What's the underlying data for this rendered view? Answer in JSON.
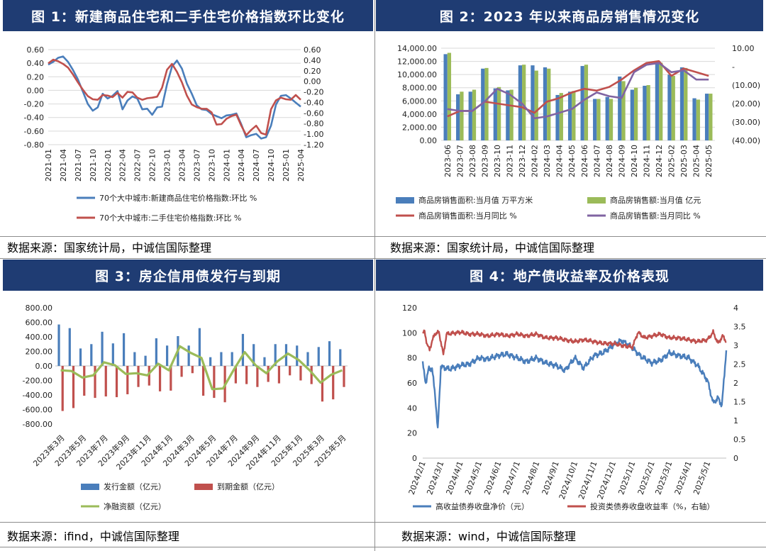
{
  "source_labels": {
    "p1": "数据来源：国家统计局，中诚信国际整理",
    "p2": "数据来源：国家统计局，中诚信国际整理",
    "p3": "数据来源：ifind，中诚信国际整理",
    "p4": "数据来源：wind，中诚信国际整理"
  },
  "colors": {
    "header": "#1f3c73",
    "blue": "#4a7ebb",
    "red": "#c0504d",
    "green": "#9bbb59",
    "purple": "#8064a2"
  },
  "chart_data": [
    {
      "type": "line",
      "title": "图 1：新建商品住宅和二手住宅价格指数环比变化",
      "x": [
        "2021-01",
        "2021-02",
        "2021-03",
        "2021-04",
        "2021-05",
        "2021-06",
        "2021-07",
        "2021-08",
        "2021-09",
        "2021-10",
        "2021-11",
        "2021-12",
        "2022-01",
        "2022-02",
        "2022-03",
        "2022-04",
        "2022-05",
        "2022-06",
        "2022-07",
        "2022-08",
        "2022-09",
        "2022-10",
        "2022-11",
        "2022-12",
        "2023-01",
        "2023-02",
        "2023-03",
        "2023-04",
        "2023-05",
        "2023-06",
        "2023-07",
        "2023-08",
        "2023-09",
        "2023-10",
        "2023-11",
        "2023-12",
        "2024-01",
        "2024-02",
        "2024-03",
        "2024-04",
        "2024-05",
        "2024-06",
        "2024-07",
        "2024-08",
        "2024-09",
        "2024-10",
        "2024-11",
        "2024-12",
        "2025-01",
        "2025-02",
        "2025-03",
        "2025-04"
      ],
      "xticks": [
        "2021-01",
        "2021-04",
        "2021-07",
        "2021-10",
        "2022-01",
        "2022-04",
        "2022-07",
        "2022-10",
        "2023-01",
        "2023-04",
        "2023-07",
        "2023-10",
        "2024-01",
        "2024-04",
        "2024-07",
        "2024-10",
        "2025-01",
        "2025-04"
      ],
      "yleft": {
        "lim": [
          -0.8,
          0.6
        ],
        "ticks": [
          "0.60",
          "0.40",
          "0.20",
          "0.00",
          "-0.20",
          "-0.40",
          "-0.60",
          "-0.80"
        ]
      },
      "yright": {
        "lim": [
          -1.2,
          0.6
        ],
        "ticks": [
          "0.60",
          "0.40",
          "0.20",
          "0.00",
          "-0.20",
          "-0.40",
          "-0.60",
          "-0.80",
          "-1.00",
          "-1.20"
        ]
      },
      "series": [
        {
          "name": "70个大中城市:新建商品住宅价格指数:环比 %",
          "axis": "left",
          "color": "#4a7ebb",
          "values": [
            0.38,
            0.42,
            0.48,
            0.5,
            0.42,
            0.3,
            0.16,
            -0.02,
            -0.2,
            -0.3,
            -0.25,
            -0.05,
            -0.12,
            -0.08,
            -0.01,
            -0.28,
            -0.15,
            -0.09,
            -0.12,
            -0.28,
            -0.27,
            -0.36,
            -0.25,
            -0.24,
            0.09,
            0.35,
            0.44,
            0.32,
            0.1,
            -0.05,
            -0.22,
            -0.28,
            -0.29,
            -0.35,
            -0.38,
            -0.41,
            -0.37,
            -0.36,
            -0.34,
            -0.5,
            -0.69,
            -0.66,
            -0.64,
            -0.71,
            -0.69,
            -0.52,
            -0.21,
            -0.08,
            -0.07,
            -0.12,
            -0.18,
            -0.24
          ]
        },
        {
          "name": "70个大中城市:二手住宅价格指数:环比 %",
          "axis": "right",
          "color": "#c0504d",
          "values": [
            0.34,
            0.41,
            0.38,
            0.33,
            0.26,
            0.13,
            -0.02,
            -0.16,
            -0.28,
            -0.34,
            -0.35,
            -0.26,
            -0.27,
            -0.3,
            -0.22,
            -0.31,
            -0.2,
            -0.21,
            -0.31,
            -0.35,
            -0.32,
            -0.31,
            -0.29,
            -0.12,
            0.22,
            0.33,
            0.18,
            -0.02,
            -0.27,
            -0.44,
            -0.49,
            -0.52,
            -0.52,
            -0.59,
            -0.82,
            -0.81,
            -0.71,
            -0.66,
            -0.63,
            -0.84,
            -1.02,
            -0.92,
            -0.84,
            -0.98,
            -1.01,
            -0.53,
            -0.36,
            -0.31,
            -0.34,
            -0.35,
            -0.26,
            -0.35
          ]
        }
      ]
    },
    {
      "type": "bar",
      "title": "图 2：2023 年以来商品房销售情况变化",
      "categories": [
        "2023-06",
        "2023-07",
        "2023-08",
        "2023-09",
        "2023-10",
        "2023-11",
        "2023-12",
        "2024-02",
        "2024-03",
        "2024-04",
        "2024-05",
        "2024-06",
        "2024-07",
        "2024-08",
        "2024-09",
        "2024-10",
        "2024-11",
        "2024-12",
        "2025-02",
        "2025-03",
        "2025-04",
        "2025-05"
      ],
      "yleft": {
        "lim": [
          0,
          14000
        ],
        "ticks": [
          "14,000.00",
          "12,000.00",
          "10,000.00",
          "8,000.00",
          "6,000.00",
          "4,000.00",
          "2,000.00",
          "0.00"
        ]
      },
      "yright": {
        "lim": [
          -40,
          10
        ],
        "ticks": [
          "10.00",
          "-",
          "(10.00)",
          "(20.00)",
          "(30.00)",
          "(40.00)"
        ]
      },
      "series": [
        {
          "name": "商品房销售面积:当月值 万平方米",
          "kind": "bar",
          "axis": "left",
          "color": "#4a7ebb",
          "values": [
            13100,
            7000,
            7400,
            10900,
            7900,
            7600,
            11400,
            11400,
            11100,
            6900,
            7400,
            11300,
            6300,
            6600,
            9700,
            7700,
            8300,
            12100,
            10000,
            11100,
            6400,
            7100
          ]
        },
        {
          "name": "商品房销售额:当月值 亿元",
          "kind": "bar",
          "axis": "left",
          "color": "#9bbb59",
          "values": [
            13300,
            7400,
            7700,
            11000,
            8100,
            7700,
            11500,
            10600,
            10900,
            7200,
            7500,
            11500,
            6300,
            6300,
            9000,
            8000,
            8400,
            11800,
            9800,
            11000,
            6200,
            7100
          ]
        },
        {
          "name": "商品房销售面积:当月同比 %",
          "kind": "line",
          "axis": "right",
          "color": "#c0504d",
          "values": [
            -27,
            -24,
            -24,
            -19,
            -20,
            -21,
            -22,
            -25,
            -19,
            -17,
            -14,
            -12,
            -13,
            -11,
            -7,
            -2,
            2,
            3,
            -5,
            -1,
            -3,
            -5
          ]
        },
        {
          "name": "商品房销售额:当月同比 %",
          "kind": "line",
          "axis": "right",
          "color": "#8064a2",
          "values": [
            -23,
            -24,
            -24,
            -19,
            -12,
            -15,
            -20,
            -28,
            -27,
            -25,
            -23,
            -18,
            -14,
            -16,
            -17,
            -3,
            1,
            2,
            -3,
            -2,
            -7,
            -7
          ]
        }
      ]
    },
    {
      "type": "bar",
      "title": "图 3：房企信用债发行与到期",
      "categories": [
        "2023年3月",
        "2023年4月",
        "2023年5月",
        "2023年6月",
        "2023年7月",
        "2023年8月",
        "2023年9月",
        "2023年10月",
        "2023年11月",
        "2023年12月",
        "2024年1月",
        "2024年2月",
        "2024年3月",
        "2024年4月",
        "2024年5月",
        "2024年6月",
        "2024年7月",
        "2024年8月",
        "2024年9月",
        "2024年10月",
        "2024年11月",
        "2024年12月",
        "2025年1月",
        "2025年2月",
        "2025年3月",
        "2025年4月",
        "2025年5月"
      ],
      "xticks": [
        "2023年3月",
        "2023年5月",
        "2023年7月",
        "2023年9月",
        "2023年11月",
        "2024年1月",
        "2024年3月",
        "2024年5月",
        "2024年7月",
        "2024年9月",
        "2024年11月",
        "2025年1月",
        "2025年3月",
        "2025年5月"
      ],
      "ylim": [
        -800,
        800
      ],
      "yticks": [
        "800.00",
        "600.00",
        "400.00",
        "200.00",
        "0.00",
        "-200.00",
        "-400.00",
        "-600.00",
        "-800.00"
      ],
      "series": [
        {
          "name": "发行金额（亿元）",
          "kind": "bar",
          "color": "#4a7ebb",
          "values": [
            570,
            520,
            240,
            300,
            470,
            310,
            450,
            190,
            140,
            380,
            280,
            410,
            280,
            520,
            120,
            190,
            190,
            440,
            300,
            120,
            300,
            300,
            280,
            190,
            260,
            340,
            230
          ]
        },
        {
          "name": "到期金额（亿元）",
          "kind": "bar",
          "color": "#c0504d",
          "values": [
            -620,
            -580,
            -410,
            -440,
            -420,
            -430,
            -390,
            -290,
            -270,
            -350,
            -340,
            -150,
            -100,
            -410,
            -440,
            -500,
            -240,
            -250,
            -290,
            -220,
            -240,
            -130,
            -200,
            -250,
            -490,
            -460,
            -290
          ]
        },
        {
          "name": "净融资额（亿元）",
          "kind": "line",
          "color": "#9bbb59",
          "values": [
            -60,
            -70,
            -160,
            -130,
            50,
            10,
            -110,
            -100,
            -130,
            30,
            -60,
            270,
            180,
            110,
            -320,
            -310,
            -50,
            190,
            10,
            -100,
            60,
            170,
            80,
            -60,
            -230,
            -120,
            -60
          ]
        }
      ]
    },
    {
      "type": "line",
      "title": "图 4：地产债收益率及价格表现",
      "x": [
        "2024/2/1",
        "2024/3/1",
        "2024/4/1",
        "2024/5/1",
        "2024/6/1",
        "2024/7/1",
        "2024/8/1",
        "2024/9/1",
        "2024/10/1",
        "2024/11/1",
        "2024/12/1",
        "2025/1/1",
        "2025/2/1",
        "2025/3/1",
        "2025/4/1",
        "2025/5/1"
      ],
      "xlim": [
        "2024/2/1",
        "2025/5/31"
      ],
      "yleft": {
        "lim": [
          0,
          120
        ],
        "ticks": [
          "120",
          "100",
          "80",
          "60",
          "40",
          "20",
          "0"
        ]
      },
      "yright": {
        "lim": [
          0,
          4
        ],
        "ticks": [
          "4",
          "3.5",
          "3",
          "2.5",
          "2",
          "1.5",
          "1",
          "0.5",
          "0"
        ]
      },
      "series": [
        {
          "name": "高收益债券收盘净价（元）",
          "axis": "left",
          "color": "#4a7ebb",
          "points": [
            [
              "2024/2/1",
              75
            ],
            [
              "2024/2/6",
              60
            ],
            [
              "2024/2/11",
              72
            ],
            [
              "2024/2/16",
              71
            ],
            [
              "2024/2/21",
              50
            ],
            [
              "2024/2/25",
              22
            ],
            [
              "2024/3/1",
              73
            ],
            [
              "2024/3/15",
              71
            ],
            [
              "2024/4/1",
              74
            ],
            [
              "2024/4/15",
              75
            ],
            [
              "2024/5/1",
              80
            ],
            [
              "2024/5/15",
              79
            ],
            [
              "2024/6/1",
              82
            ],
            [
              "2024/6/15",
              83
            ],
            [
              "2024/7/1",
              80
            ],
            [
              "2024/7/15",
              77
            ],
            [
              "2024/8/1",
              80
            ],
            [
              "2024/8/15",
              76
            ],
            [
              "2024/9/1",
              74
            ],
            [
              "2024/9/15",
              70
            ],
            [
              "2024/10/1",
              80
            ],
            [
              "2024/10/15",
              72
            ],
            [
              "2024/11/1",
              82
            ],
            [
              "2024/11/15",
              84
            ],
            [
              "2024/12/1",
              90
            ],
            [
              "2024/12/15",
              94
            ],
            [
              "2025/1/1",
              88
            ],
            [
              "2025/1/15",
              81
            ],
            [
              "2025/2/1",
              76
            ],
            [
              "2025/2/15",
              78
            ],
            [
              "2025/3/1",
              84
            ],
            [
              "2025/3/15",
              82
            ],
            [
              "2025/4/1",
              80
            ],
            [
              "2025/4/15",
              74
            ],
            [
              "2025/5/1",
              62
            ],
            [
              "2025/5/10",
              44
            ],
            [
              "2025/5/18",
              48
            ],
            [
              "2025/5/24",
              42
            ],
            [
              "2025/5/31",
              86
            ]
          ]
        },
        {
          "name": "投资类债券收盘收益率（%，右轴）",
          "axis": "right",
          "color": "#c0504d",
          "points": [
            [
              "2024/2/1",
              3.3
            ],
            [
              "2024/2/4",
              3.4
            ],
            [
              "2024/2/8",
              3.0
            ],
            [
              "2024/2/12",
              2.9
            ],
            [
              "2024/2/20",
              3.3
            ],
            [
              "2024/2/27",
              3.35
            ],
            [
              "2024/3/5",
              2.75
            ],
            [
              "2024/3/10",
              3.3
            ],
            [
              "2024/4/1",
              3.35
            ],
            [
              "2024/4/15",
              3.3
            ],
            [
              "2024/5/1",
              3.3
            ],
            [
              "2024/5/15",
              3.25
            ],
            [
              "2024/6/1",
              3.3
            ],
            [
              "2024/6/15",
              3.25
            ],
            [
              "2024/7/1",
              3.3
            ],
            [
              "2024/7/15",
              3.25
            ],
            [
              "2024/8/1",
              3.3
            ],
            [
              "2024/8/15",
              3.2
            ],
            [
              "2024/9/1",
              3.2
            ],
            [
              "2024/9/15",
              3.15
            ],
            [
              "2024/10/1",
              3.1
            ],
            [
              "2024/10/15",
              3.15
            ],
            [
              "2024/11/1",
              3.1
            ],
            [
              "2024/11/15",
              3.05
            ],
            [
              "2024/12/1",
              3.05
            ],
            [
              "2024/12/15",
              3.0
            ],
            [
              "2025/1/1",
              2.95
            ],
            [
              "2025/1/10",
              3.35
            ],
            [
              "2025/1/20",
              3.2
            ],
            [
              "2025/2/1",
              3.25
            ],
            [
              "2025/2/15",
              3.3
            ],
            [
              "2025/3/1",
              3.2
            ],
            [
              "2025/3/15",
              3.2
            ],
            [
              "2025/4/1",
              3.15
            ],
            [
              "2025/4/15",
              3.1
            ],
            [
              "2025/5/1",
              3.15
            ],
            [
              "2025/5/10",
              3.35
            ],
            [
              "2025/5/18",
              3.05
            ],
            [
              "2025/5/25",
              3.25
            ],
            [
              "2025/5/31",
              3.1
            ]
          ]
        }
      ]
    }
  ]
}
